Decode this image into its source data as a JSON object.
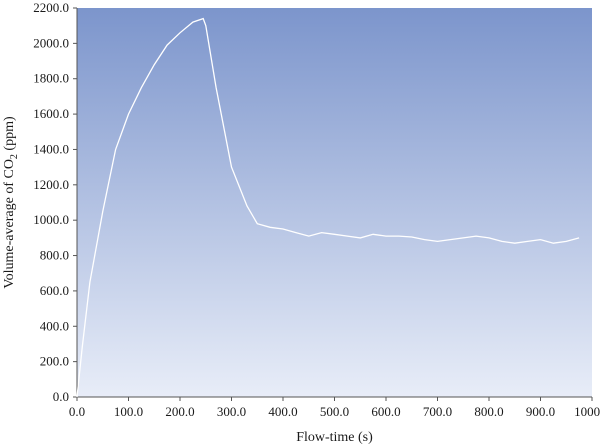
{
  "chart_data": {
    "type": "line",
    "xlabel": "Flow-time (s)",
    "ylabel": {
      "prefix": "Volume-average of CO",
      "subscript": "2",
      "suffix": " (ppm)"
    },
    "xlim": [
      0,
      1000
    ],
    "ylim": [
      0,
      2200
    ],
    "x_ticks": [
      0,
      100,
      200,
      300,
      400,
      500,
      600,
      700,
      800,
      900,
      1000
    ],
    "x_tick_labels": [
      "0.0",
      "100.0",
      "200.0",
      "300.0",
      "400.0",
      "500.0",
      "600.0",
      "700.0",
      "800.0",
      "900.0",
      "1000.0"
    ],
    "y_ticks": [
      0,
      200,
      400,
      600,
      800,
      1000,
      1200,
      1400,
      1600,
      1800,
      2000,
      2200
    ],
    "y_tick_labels": [
      "0.0",
      "200.0",
      "400.0",
      "600.0",
      "800.0",
      "1000.0",
      "1200.0",
      "1400.0",
      "1600.0",
      "1800.0",
      "2000.0",
      "2200.0"
    ],
    "grid": false,
    "colors": {
      "background_top": "#7c95cc",
      "background_bottom": "#e8edf8",
      "line": "#ffffff"
    },
    "series": [
      {
        "x": [
          0,
          10,
          25,
          50,
          75,
          100,
          125,
          150,
          175,
          200,
          225,
          245,
          250,
          270,
          300,
          330,
          350,
          375,
          400,
          425,
          450,
          475,
          500,
          525,
          550,
          575,
          600,
          625,
          650,
          675,
          700,
          725,
          750,
          775,
          800,
          825,
          850,
          875,
          900,
          925,
          950,
          975
        ],
        "y": [
          0,
          280,
          650,
          1050,
          1400,
          1600,
          1750,
          1880,
          1990,
          2060,
          2120,
          2140,
          2100,
          1750,
          1300,
          1080,
          980,
          960,
          950,
          930,
          910,
          930,
          920,
          910,
          900,
          920,
          910,
          910,
          905,
          890,
          880,
          890,
          900,
          910,
          900,
          880,
          870,
          880,
          890,
          870,
          880,
          900
        ]
      }
    ]
  }
}
